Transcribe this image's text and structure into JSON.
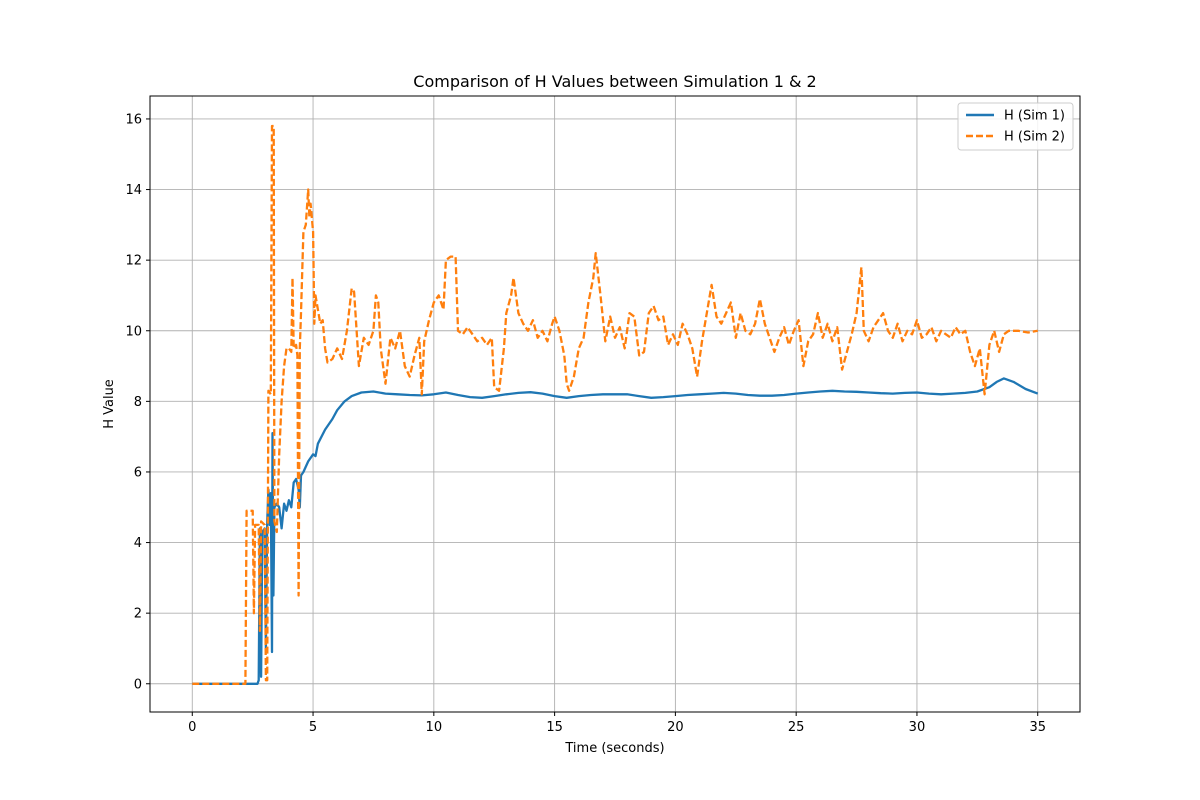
{
  "chart_data": {
    "type": "line",
    "title": "Comparison of H Values between Simulation 1 & 2",
    "xlabel": "Time (seconds)",
    "ylabel": "H Value",
    "xlim": [
      -1.75,
      36.75
    ],
    "ylim": [
      -0.8,
      16.65
    ],
    "xticks": [
      0,
      5,
      10,
      15,
      20,
      25,
      30,
      35
    ],
    "yticks": [
      0,
      2,
      4,
      6,
      8,
      10,
      12,
      14,
      16
    ],
    "grid": true,
    "legend_position": "top-right",
    "series": [
      {
        "name": "H (Sim 1)",
        "color": "#1f77b4",
        "style": "solid",
        "points": [
          [
            0,
            0
          ],
          [
            2.7,
            0
          ],
          [
            2.75,
            0.1
          ],
          [
            2.8,
            4.4
          ],
          [
            2.85,
            0.2
          ],
          [
            2.9,
            4.3
          ],
          [
            3.0,
            4.4
          ],
          [
            3.05,
            1.0
          ],
          [
            3.1,
            4.6
          ],
          [
            3.15,
            5.5
          ],
          [
            3.2,
            4.5
          ],
          [
            3.25,
            5.4
          ],
          [
            3.3,
            0.9
          ],
          [
            3.32,
            7.1
          ],
          [
            3.36,
            2.5
          ],
          [
            3.4,
            5.0
          ],
          [
            3.5,
            5.1
          ],
          [
            3.6,
            5.0
          ],
          [
            3.7,
            4.4
          ],
          [
            3.8,
            5.1
          ],
          [
            3.9,
            4.9
          ],
          [
            4.0,
            5.2
          ],
          [
            4.1,
            5.0
          ],
          [
            4.2,
            5.7
          ],
          [
            4.3,
            5.8
          ],
          [
            4.4,
            5.5
          ],
          [
            4.45,
            5.0
          ],
          [
            4.5,
            5.9
          ],
          [
            4.6,
            6.0
          ],
          [
            4.8,
            6.3
          ],
          [
            5.0,
            6.5
          ],
          [
            5.1,
            6.45
          ],
          [
            5.2,
            6.8
          ],
          [
            5.5,
            7.2
          ],
          [
            5.8,
            7.5
          ],
          [
            6.0,
            7.75
          ],
          [
            6.3,
            8.0
          ],
          [
            6.6,
            8.15
          ],
          [
            7.0,
            8.25
          ],
          [
            7.5,
            8.28
          ],
          [
            8.0,
            8.22
          ],
          [
            8.5,
            8.2
          ],
          [
            9.0,
            8.18
          ],
          [
            9.5,
            8.17
          ],
          [
            10.0,
            8.2
          ],
          [
            10.5,
            8.25
          ],
          [
            11.0,
            8.18
          ],
          [
            11.5,
            8.12
          ],
          [
            12.0,
            8.1
          ],
          [
            12.5,
            8.15
          ],
          [
            13.0,
            8.2
          ],
          [
            13.5,
            8.24
          ],
          [
            14.0,
            8.26
          ],
          [
            14.5,
            8.22
          ],
          [
            15.0,
            8.15
          ],
          [
            15.5,
            8.1
          ],
          [
            16.0,
            8.15
          ],
          [
            16.5,
            8.18
          ],
          [
            17.0,
            8.2
          ],
          [
            17.5,
            8.2
          ],
          [
            18.0,
            8.2
          ],
          [
            18.5,
            8.15
          ],
          [
            19.0,
            8.1
          ],
          [
            19.5,
            8.12
          ],
          [
            20.0,
            8.15
          ],
          [
            20.5,
            8.18
          ],
          [
            21.0,
            8.2
          ],
          [
            21.5,
            8.22
          ],
          [
            22.0,
            8.24
          ],
          [
            22.5,
            8.22
          ],
          [
            23.0,
            8.18
          ],
          [
            23.5,
            8.16
          ],
          [
            24.0,
            8.16
          ],
          [
            24.5,
            8.18
          ],
          [
            25.0,
            8.22
          ],
          [
            25.5,
            8.25
          ],
          [
            26.0,
            8.28
          ],
          [
            26.5,
            8.3
          ],
          [
            27.0,
            8.28
          ],
          [
            27.5,
            8.27
          ],
          [
            28.0,
            8.25
          ],
          [
            28.5,
            8.23
          ],
          [
            29.0,
            8.22
          ],
          [
            29.5,
            8.24
          ],
          [
            30.0,
            8.25
          ],
          [
            30.5,
            8.22
          ],
          [
            31.0,
            8.2
          ],
          [
            31.5,
            8.22
          ],
          [
            32.0,
            8.24
          ],
          [
            32.5,
            8.28
          ],
          [
            33.0,
            8.4
          ],
          [
            33.3,
            8.55
          ],
          [
            33.6,
            8.65
          ],
          [
            34.0,
            8.55
          ],
          [
            34.5,
            8.35
          ],
          [
            35.0,
            8.22
          ]
        ]
      },
      {
        "name": "H (Sim 2)",
        "color": "#ff7f0e",
        "style": "dashed",
        "points": [
          [
            0,
            0
          ],
          [
            2.2,
            0
          ],
          [
            2.25,
            4.9
          ],
          [
            2.5,
            4.9
          ],
          [
            2.55,
            2.0
          ],
          [
            2.6,
            4.5
          ],
          [
            2.75,
            4.5
          ],
          [
            2.8,
            1.5
          ],
          [
            2.85,
            4.6
          ],
          [
            3.0,
            4.5
          ],
          [
            3.05,
            0.1
          ],
          [
            3.1,
            0.1
          ],
          [
            3.15,
            8.3
          ],
          [
            3.25,
            8.2
          ],
          [
            3.3,
            15.8
          ],
          [
            3.37,
            15.8
          ],
          [
            3.4,
            4.6
          ],
          [
            3.5,
            4.3
          ],
          [
            3.6,
            6.5
          ],
          [
            3.7,
            8.0
          ],
          [
            3.8,
            9.0
          ],
          [
            3.9,
            9.5
          ],
          [
            4.0,
            9.5
          ],
          [
            4.1,
            9.4
          ],
          [
            4.15,
            11.5
          ],
          [
            4.2,
            9.5
          ],
          [
            4.3,
            9.6
          ],
          [
            4.35,
            9.3
          ],
          [
            4.4,
            2.5
          ],
          [
            4.45,
            9.5
          ],
          [
            4.5,
            10.5
          ],
          [
            4.6,
            12.8
          ],
          [
            4.7,
            13.0
          ],
          [
            4.8,
            14.0
          ],
          [
            4.85,
            13.2
          ],
          [
            4.9,
            13.6
          ],
          [
            5.0,
            12.8
          ],
          [
            5.05,
            10.2
          ],
          [
            5.1,
            11.0
          ],
          [
            5.2,
            10.6
          ],
          [
            5.3,
            10.2
          ],
          [
            5.4,
            10.3
          ],
          [
            5.5,
            9.5
          ],
          [
            5.6,
            9.1
          ],
          [
            5.8,
            9.2
          ],
          [
            6.0,
            9.5
          ],
          [
            6.2,
            9.2
          ],
          [
            6.4,
            10.0
          ],
          [
            6.6,
            11.2
          ],
          [
            6.7,
            11.1
          ],
          [
            6.9,
            9.0
          ],
          [
            7.1,
            9.8
          ],
          [
            7.3,
            9.6
          ],
          [
            7.5,
            10.0
          ],
          [
            7.6,
            11.0
          ],
          [
            7.7,
            10.8
          ],
          [
            7.8,
            9.5
          ],
          [
            8.0,
            8.5
          ],
          [
            8.2,
            9.8
          ],
          [
            8.4,
            9.5
          ],
          [
            8.6,
            10.0
          ],
          [
            8.8,
            9.0
          ],
          [
            9.0,
            8.7
          ],
          [
            9.2,
            9.3
          ],
          [
            9.4,
            9.8
          ],
          [
            9.5,
            8.2
          ],
          [
            9.6,
            9.7
          ],
          [
            9.8,
            10.3
          ],
          [
            10.0,
            10.8
          ],
          [
            10.2,
            11.0
          ],
          [
            10.4,
            10.6
          ],
          [
            10.5,
            12.0
          ],
          [
            10.7,
            12.1
          ],
          [
            10.9,
            12.1
          ],
          [
            11.0,
            10.0
          ],
          [
            11.2,
            9.9
          ],
          [
            11.4,
            10.1
          ],
          [
            11.6,
            9.9
          ],
          [
            11.8,
            9.7
          ],
          [
            12.0,
            9.8
          ],
          [
            12.2,
            9.6
          ],
          [
            12.4,
            9.8
          ],
          [
            12.5,
            8.4
          ],
          [
            12.7,
            8.3
          ],
          [
            12.9,
            9.5
          ],
          [
            13.0,
            10.5
          ],
          [
            13.2,
            11.0
          ],
          [
            13.3,
            11.5
          ],
          [
            13.5,
            10.5
          ],
          [
            13.7,
            10.2
          ],
          [
            13.9,
            10.0
          ],
          [
            14.1,
            10.3
          ],
          [
            14.3,
            9.8
          ],
          [
            14.5,
            10.0
          ],
          [
            14.7,
            9.7
          ],
          [
            14.9,
            10.2
          ],
          [
            15.0,
            10.4
          ],
          [
            15.2,
            10.0
          ],
          [
            15.4,
            9.3
          ],
          [
            15.5,
            8.5
          ],
          [
            15.6,
            8.3
          ],
          [
            15.8,
            8.7
          ],
          [
            16.0,
            9.5
          ],
          [
            16.2,
            9.8
          ],
          [
            16.4,
            10.8
          ],
          [
            16.6,
            11.5
          ],
          [
            16.7,
            12.2
          ],
          [
            16.9,
            11.0
          ],
          [
            17.1,
            9.7
          ],
          [
            17.3,
            10.4
          ],
          [
            17.5,
            9.8
          ],
          [
            17.7,
            10.1
          ],
          [
            17.9,
            9.5
          ],
          [
            18.1,
            10.5
          ],
          [
            18.3,
            10.4
          ],
          [
            18.5,
            9.3
          ],
          [
            18.7,
            9.4
          ],
          [
            18.9,
            10.5
          ],
          [
            19.1,
            10.7
          ],
          [
            19.3,
            10.3
          ],
          [
            19.5,
            10.4
          ],
          [
            19.7,
            9.6
          ],
          [
            19.9,
            9.9
          ],
          [
            20.1,
            9.6
          ],
          [
            20.3,
            10.2
          ],
          [
            20.5,
            9.9
          ],
          [
            20.7,
            9.5
          ],
          [
            20.9,
            8.7
          ],
          [
            21.1,
            9.7
          ],
          [
            21.3,
            10.5
          ],
          [
            21.5,
            11.3
          ],
          [
            21.7,
            10.4
          ],
          [
            21.9,
            10.2
          ],
          [
            22.1,
            10.5
          ],
          [
            22.3,
            10.8
          ],
          [
            22.5,
            9.8
          ],
          [
            22.7,
            10.5
          ],
          [
            22.9,
            10.0
          ],
          [
            23.1,
            9.9
          ],
          [
            23.3,
            10.2
          ],
          [
            23.5,
            10.9
          ],
          [
            23.7,
            10.2
          ],
          [
            23.9,
            9.8
          ],
          [
            24.1,
            9.4
          ],
          [
            24.3,
            9.8
          ],
          [
            24.5,
            10.1
          ],
          [
            24.7,
            9.6
          ],
          [
            24.9,
            10.0
          ],
          [
            25.1,
            10.3
          ],
          [
            25.3,
            9.0
          ],
          [
            25.5,
            9.7
          ],
          [
            25.7,
            9.9
          ],
          [
            25.9,
            10.5
          ],
          [
            26.1,
            9.8
          ],
          [
            26.3,
            10.2
          ],
          [
            26.5,
            9.7
          ],
          [
            26.7,
            10.1
          ],
          [
            26.9,
            8.9
          ],
          [
            27.1,
            9.4
          ],
          [
            27.3,
            9.9
          ],
          [
            27.5,
            10.5
          ],
          [
            27.7,
            11.8
          ],
          [
            27.8,
            10.0
          ],
          [
            28.0,
            9.7
          ],
          [
            28.2,
            10.1
          ],
          [
            28.4,
            10.3
          ],
          [
            28.6,
            10.5
          ],
          [
            28.8,
            10.0
          ],
          [
            29.0,
            9.8
          ],
          [
            29.2,
            10.2
          ],
          [
            29.4,
            9.7
          ],
          [
            29.6,
            10.0
          ],
          [
            29.8,
            9.9
          ],
          [
            30.0,
            10.3
          ],
          [
            30.2,
            9.8
          ],
          [
            30.4,
            9.9
          ],
          [
            30.6,
            10.1
          ],
          [
            30.8,
            9.7
          ],
          [
            31.0,
            10.0
          ],
          [
            31.2,
            9.9
          ],
          [
            31.4,
            9.8
          ],
          [
            31.6,
            10.1
          ],
          [
            31.8,
            9.9
          ],
          [
            32.0,
            10.0
          ],
          [
            32.2,
            9.4
          ],
          [
            32.4,
            9.0
          ],
          [
            32.6,
            9.5
          ],
          [
            32.8,
            8.2
          ],
          [
            33.0,
            9.6
          ],
          [
            33.2,
            10.0
          ],
          [
            33.4,
            9.4
          ],
          [
            33.6,
            9.9
          ],
          [
            33.8,
            10.0
          ],
          [
            34.2,
            10.0
          ],
          [
            34.6,
            9.95
          ],
          [
            35.0,
            10.0
          ]
        ]
      }
    ]
  }
}
